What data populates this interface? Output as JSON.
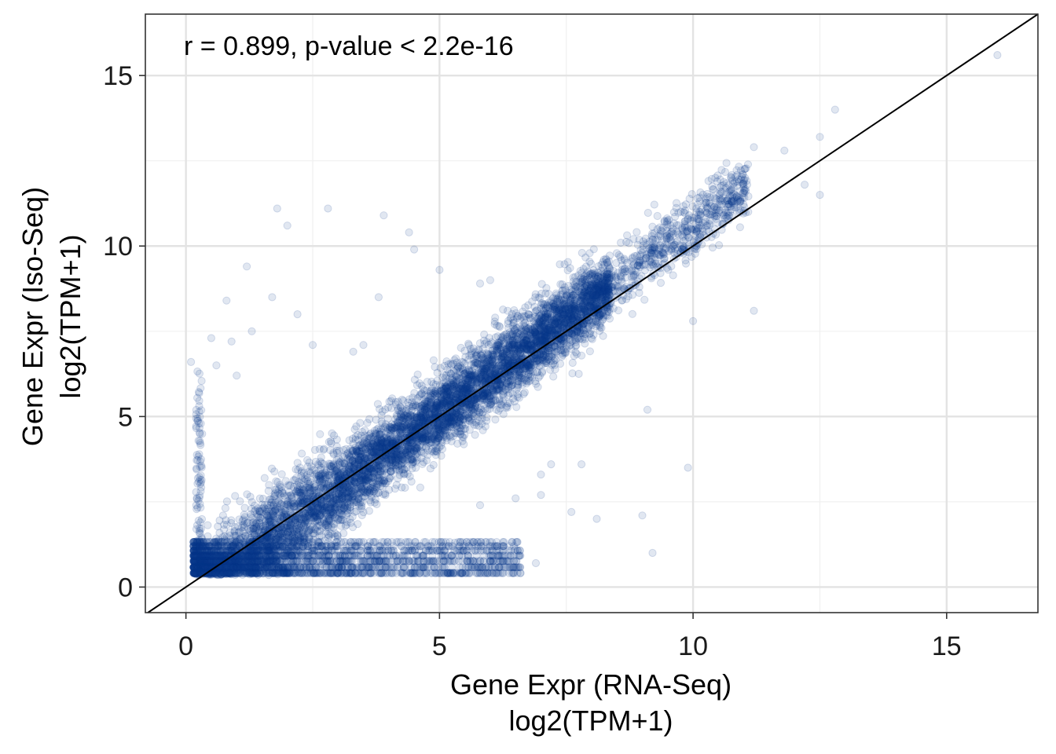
{
  "chart_data": {
    "type": "scatter",
    "annotation": "r = 0.899, p-value < 2.2e-16",
    "xlabel": [
      "Gene Expr (RNA-Seq)",
      "log2(TPM+1)"
    ],
    "ylabel": [
      "Gene Expr (Iso-Seq)",
      "log2(TPM+1)"
    ],
    "xlim": [
      -0.8,
      16.8
    ],
    "ylim": [
      -0.75,
      16.8
    ],
    "x_ticks": [
      0,
      5,
      10,
      15
    ],
    "y_ticks": [
      0,
      5,
      10,
      15
    ],
    "x_tick_labels": [
      "0",
      "5",
      "10",
      "15"
    ],
    "y_tick_labels": [
      "0",
      "5",
      "10",
      "15"
    ],
    "grid": true,
    "legend": "none",
    "point_color": "#0b3a8c",
    "point_alpha": 0.12,
    "reference_line": {
      "type": "identity",
      "slope": 1,
      "intercept": 0,
      "color": "#000000"
    },
    "outlier_points": [
      {
        "x": 1.8,
        "y": 11.1
      },
      {
        "x": 2.8,
        "y": 11.1
      },
      {
        "x": 2.0,
        "y": 10.6
      },
      {
        "x": 3.9,
        "y": 10.9
      },
      {
        "x": 1.2,
        "y": 9.4
      },
      {
        "x": 4.5,
        "y": 9.9
      },
      {
        "x": 4.4,
        "y": 10.4
      },
      {
        "x": 0.8,
        "y": 8.4
      },
      {
        "x": 1.7,
        "y": 8.5
      },
      {
        "x": 2.2,
        "y": 8.0
      },
      {
        "x": 3.8,
        "y": 8.5
      },
      {
        "x": 0.5,
        "y": 7.3
      },
      {
        "x": 0.9,
        "y": 7.2
      },
      {
        "x": 1.3,
        "y": 7.5
      },
      {
        "x": 2.5,
        "y": 7.1
      },
      {
        "x": 3.5,
        "y": 7.1
      },
      {
        "x": 0.1,
        "y": 6.6
      },
      {
        "x": 0.6,
        "y": 6.5
      },
      {
        "x": 1.0,
        "y": 6.2
      },
      {
        "x": 3.3,
        "y": 6.9
      },
      {
        "x": 6.0,
        "y": 9.0
      },
      {
        "x": 5.8,
        "y": 8.9
      },
      {
        "x": 5.0,
        "y": 9.3
      },
      {
        "x": 12.8,
        "y": 14.0
      },
      {
        "x": 12.5,
        "y": 13.2
      },
      {
        "x": 16.0,
        "y": 15.6
      },
      {
        "x": 11.2,
        "y": 12.9
      },
      {
        "x": 11.8,
        "y": 12.8
      },
      {
        "x": 12.5,
        "y": 11.5
      },
      {
        "x": 12.2,
        "y": 11.8
      },
      {
        "x": 11.2,
        "y": 8.1
      },
      {
        "x": 10.0,
        "y": 7.8
      },
      {
        "x": 9.9,
        "y": 3.5
      },
      {
        "x": 9.1,
        "y": 5.2
      },
      {
        "x": 9.0,
        "y": 2.1
      },
      {
        "x": 9.2,
        "y": 1.0
      },
      {
        "x": 8.1,
        "y": 2.0
      },
      {
        "x": 7.6,
        "y": 2.2
      },
      {
        "x": 7.0,
        "y": 2.7
      },
      {
        "x": 6.5,
        "y": 2.6
      },
      {
        "x": 7.8,
        "y": 3.6
      },
      {
        "x": 7.0,
        "y": 3.3
      },
      {
        "x": 7.2,
        "y": 3.6
      },
      {
        "x": 6.9,
        "y": 0.7
      },
      {
        "x": 6.5,
        "y": 1.1
      },
      {
        "x": 5.3,
        "y": 1.3
      },
      {
        "x": 5.8,
        "y": 2.4
      }
    ],
    "dense_trend": {
      "x_range": [
        0.15,
        11.1
      ],
      "y_equals_approx": "1.1*x - 0.4",
      "spread_sd": 0.55,
      "n_points": 7000
    },
    "floor_band": {
      "y_levels": [
        0.41,
        0.58,
        0.76,
        0.92,
        1.07,
        1.2,
        1.32
      ],
      "x_range": [
        0.15,
        6.6
      ]
    }
  }
}
